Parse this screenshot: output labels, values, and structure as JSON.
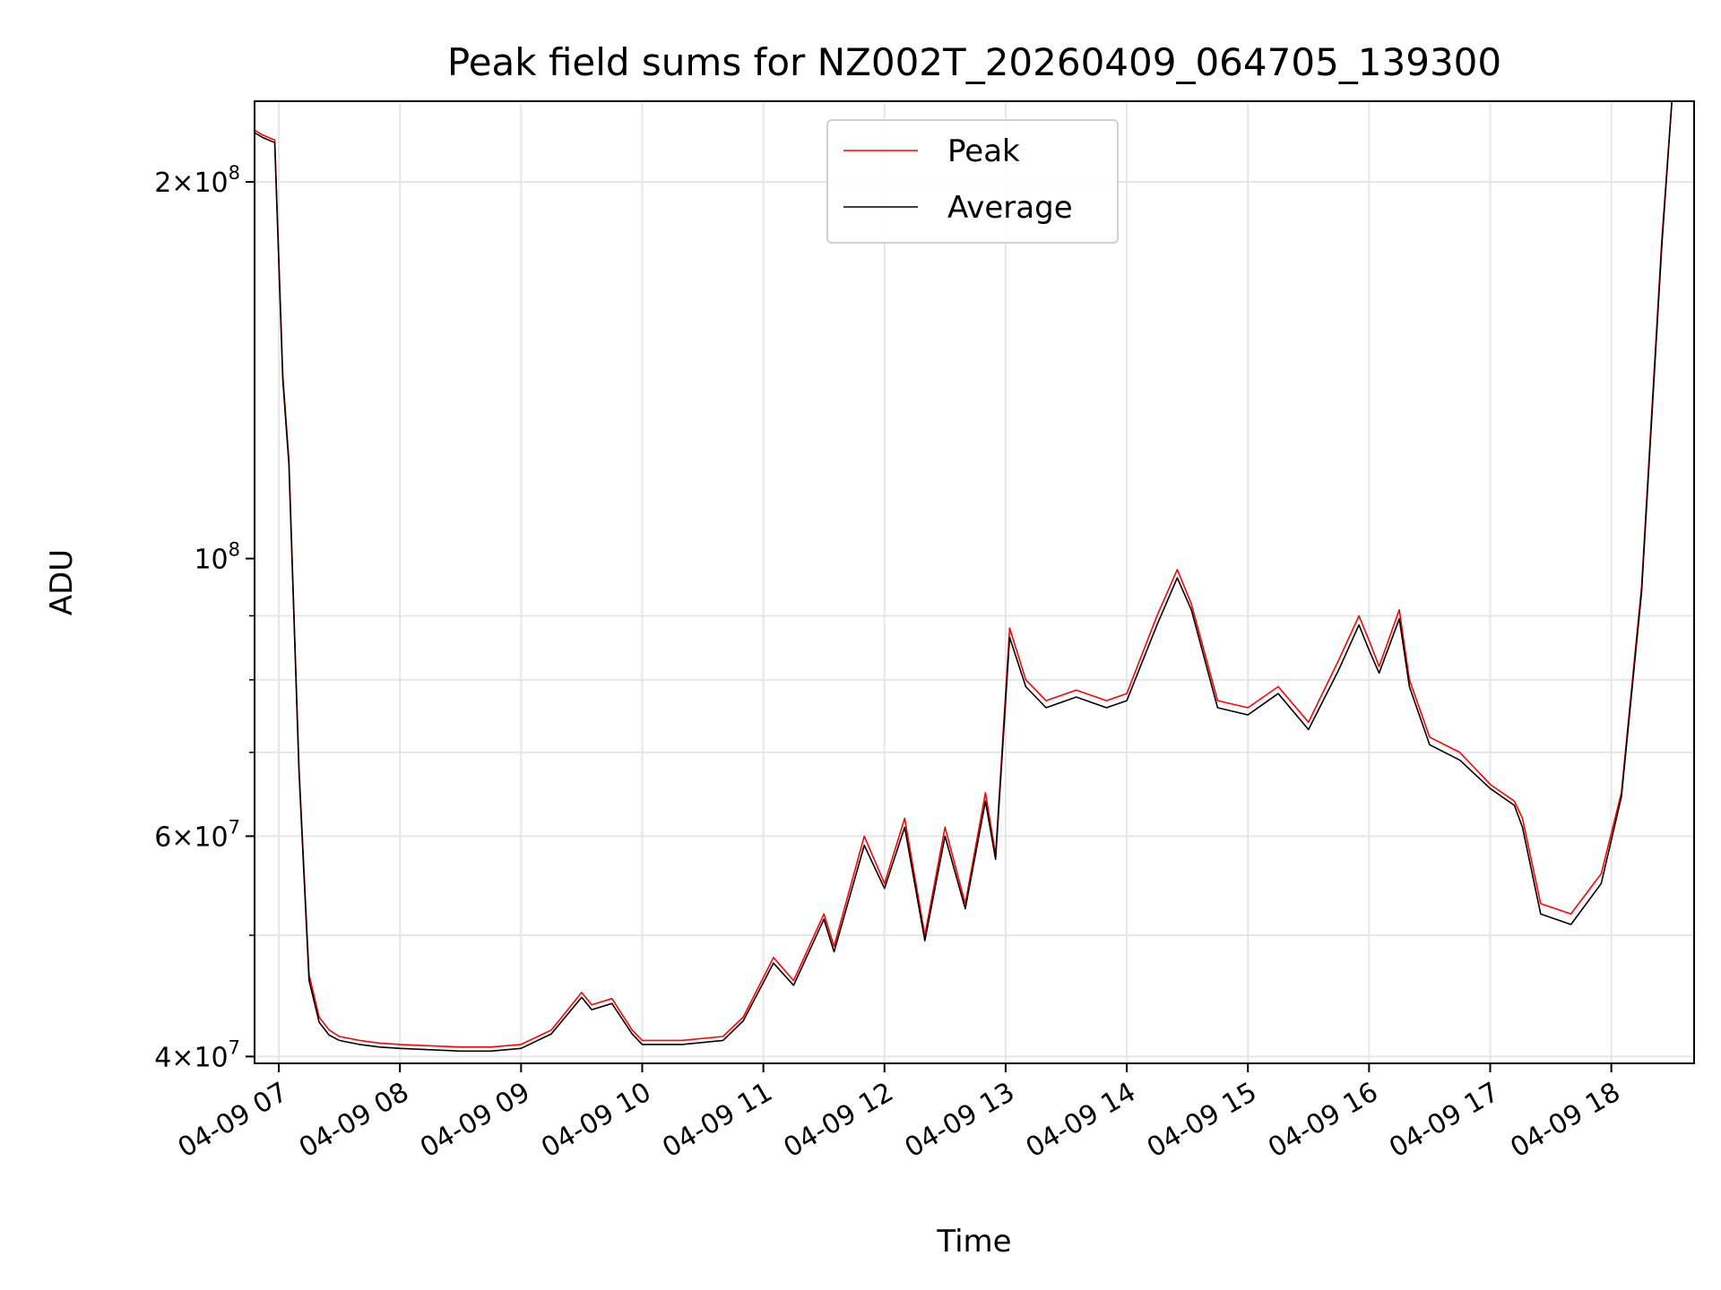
{
  "chart_data": {
    "type": "line",
    "title": "Peak field sums for NZ002T_20260409_064705_139300",
    "xlabel": "Time",
    "ylabel": "ADU",
    "yscale": "log",
    "ylim": [
      39500000,
      232000000
    ],
    "xlim": [
      "2026-04-09T06:48",
      "2026-04-09T18:41"
    ],
    "grid": true,
    "legend_position": "top-center",
    "x_ticks": [
      "04-09 07",
      "04-09 08",
      "04-09 09",
      "04-09 10",
      "04-09 11",
      "04-09 12",
      "04-09 13",
      "04-09 14",
      "04-09 15",
      "04-09 16",
      "04-09 17",
      "04-09 18"
    ],
    "y_ticks": [
      {
        "value": 40000000,
        "base": "4×10",
        "exp": "7"
      },
      {
        "value": 60000000,
        "base": "6×10",
        "exp": "7"
      },
      {
        "value": 100000000,
        "base": "10",
        "exp": "8"
      },
      {
        "value": 200000000,
        "base": "2×10",
        "exp": "8"
      }
    ],
    "series": [
      {
        "name": "Peak",
        "color": "#ff0000",
        "x": [
          "2026-04-09T06:48",
          "2026-04-09T06:52",
          "2026-04-09T06:58",
          "2026-04-09T07:02",
          "2026-04-09T07:05",
          "2026-04-09T07:10",
          "2026-04-09T07:15",
          "2026-04-09T07:20",
          "2026-04-09T07:25",
          "2026-04-09T07:30",
          "2026-04-09T07:40",
          "2026-04-09T07:50",
          "2026-04-09T08:00",
          "2026-04-09T08:15",
          "2026-04-09T08:30",
          "2026-04-09T08:45",
          "2026-04-09T09:00",
          "2026-04-09T09:15",
          "2026-04-09T09:30",
          "2026-04-09T09:35",
          "2026-04-09T09:45",
          "2026-04-09T09:55",
          "2026-04-09T10:00",
          "2026-04-09T10:20",
          "2026-04-09T10:40",
          "2026-04-09T10:50",
          "2026-04-09T11:05",
          "2026-04-09T11:15",
          "2026-04-09T11:30",
          "2026-04-09T11:35",
          "2026-04-09T11:50",
          "2026-04-09T12:00",
          "2026-04-09T12:10",
          "2026-04-09T12:20",
          "2026-04-09T12:30",
          "2026-04-09T12:40",
          "2026-04-09T12:50",
          "2026-04-09T12:55",
          "2026-04-09T13:02",
          "2026-04-09T13:10",
          "2026-04-09T13:20",
          "2026-04-09T13:35",
          "2026-04-09T13:50",
          "2026-04-09T14:00",
          "2026-04-09T14:15",
          "2026-04-09T14:25",
          "2026-04-09T14:32",
          "2026-04-09T14:45",
          "2026-04-09T15:00",
          "2026-04-09T15:15",
          "2026-04-09T15:30",
          "2026-04-09T15:45",
          "2026-04-09T15:55",
          "2026-04-09T16:00",
          "2026-04-09T16:05",
          "2026-04-09T16:15",
          "2026-04-09T16:20",
          "2026-04-09T16:30",
          "2026-04-09T16:45",
          "2026-04-09T17:00",
          "2026-04-09T17:12",
          "2026-04-09T17:16",
          "2026-04-09T17:25",
          "2026-04-09T17:40",
          "2026-04-09T17:55",
          "2026-04-09T18:05",
          "2026-04-09T18:15",
          "2026-04-09T18:25",
          "2026-04-09T18:30",
          "2026-04-09T18:41"
        ],
        "values": [
          220000000,
          218000000,
          216000000,
          140000000,
          120000000,
          68000000,
          46500000,
          43000000,
          42000000,
          41500000,
          41200000,
          41000000,
          40900000,
          40800000,
          40700000,
          40700000,
          40900000,
          42000000,
          45000000,
          44000000,
          44500000,
          42000000,
          41200000,
          41200000,
          41500000,
          43000000,
          48000000,
          46000000,
          52000000,
          49000000,
          60000000,
          55000000,
          62000000,
          50000000,
          61000000,
          53000000,
          65000000,
          58000000,
          88000000,
          80000000,
          77000000,
          78500000,
          77000000,
          78000000,
          90000000,
          98000000,
          92000000,
          77000000,
          76000000,
          79000000,
          74000000,
          83000000,
          90000000,
          86000000,
          82000000,
          91000000,
          80000000,
          72000000,
          70000000,
          66000000,
          64000000,
          62000000,
          53000000,
          52000000,
          56000000,
          65000000,
          95000000,
          180000000,
          232000000,
          232000000
        ]
      },
      {
        "name": "Average",
        "color": "#000000",
        "x": [
          "2026-04-09T06:48",
          "2026-04-09T06:52",
          "2026-04-09T06:58",
          "2026-04-09T07:02",
          "2026-04-09T07:05",
          "2026-04-09T07:10",
          "2026-04-09T07:15",
          "2026-04-09T07:20",
          "2026-04-09T07:25",
          "2026-04-09T07:30",
          "2026-04-09T07:40",
          "2026-04-09T07:50",
          "2026-04-09T08:00",
          "2026-04-09T08:15",
          "2026-04-09T08:30",
          "2026-04-09T08:45",
          "2026-04-09T09:00",
          "2026-04-09T09:15",
          "2026-04-09T09:30",
          "2026-04-09T09:35",
          "2026-04-09T09:45",
          "2026-04-09T09:55",
          "2026-04-09T10:00",
          "2026-04-09T10:20",
          "2026-04-09T10:40",
          "2026-04-09T10:50",
          "2026-04-09T11:05",
          "2026-04-09T11:15",
          "2026-04-09T11:30",
          "2026-04-09T11:35",
          "2026-04-09T11:50",
          "2026-04-09T12:00",
          "2026-04-09T12:10",
          "2026-04-09T12:20",
          "2026-04-09T12:30",
          "2026-04-09T12:40",
          "2026-04-09T12:50",
          "2026-04-09T12:55",
          "2026-04-09T13:02",
          "2026-04-09T13:10",
          "2026-04-09T13:20",
          "2026-04-09T13:35",
          "2026-04-09T13:50",
          "2026-04-09T14:00",
          "2026-04-09T14:15",
          "2026-04-09T14:25",
          "2026-04-09T14:32",
          "2026-04-09T14:45",
          "2026-04-09T15:00",
          "2026-04-09T15:15",
          "2026-04-09T15:30",
          "2026-04-09T15:45",
          "2026-04-09T15:55",
          "2026-04-09T16:00",
          "2026-04-09T16:05",
          "2026-04-09T16:15",
          "2026-04-09T16:20",
          "2026-04-09T16:30",
          "2026-04-09T16:45",
          "2026-04-09T17:00",
          "2026-04-09T17:12",
          "2026-04-09T17:16",
          "2026-04-09T17:25",
          "2026-04-09T17:40",
          "2026-04-09T17:55",
          "2026-04-09T18:05",
          "2026-04-09T18:15",
          "2026-04-09T18:25",
          "2026-04-09T18:30",
          "2026-04-09T18:41"
        ],
        "values": [
          219000000,
          217000000,
          215000000,
          139000000,
          119000000,
          67500000,
          46000000,
          42600000,
          41600000,
          41200000,
          40900000,
          40700000,
          40600000,
          40500000,
          40400000,
          40400000,
          40600000,
          41700000,
          44600000,
          43600000,
          44100000,
          41700000,
          40900000,
          40900000,
          41200000,
          42700000,
          47500000,
          45600000,
          51500000,
          48500000,
          59000000,
          54500000,
          61000000,
          49500000,
          60000000,
          52500000,
          64000000,
          57500000,
          86500000,
          79000000,
          76000000,
          77500000,
          76000000,
          77000000,
          88500000,
          96500000,
          91000000,
          76000000,
          75000000,
          78000000,
          73000000,
          81500000,
          88500000,
          84500000,
          81000000,
          89500000,
          79000000,
          71000000,
          69000000,
          65500000,
          63500000,
          61000000,
          52000000,
          51000000,
          55000000,
          64500000,
          94000000,
          178000000,
          232000000,
          232000000
        ]
      }
    ]
  }
}
